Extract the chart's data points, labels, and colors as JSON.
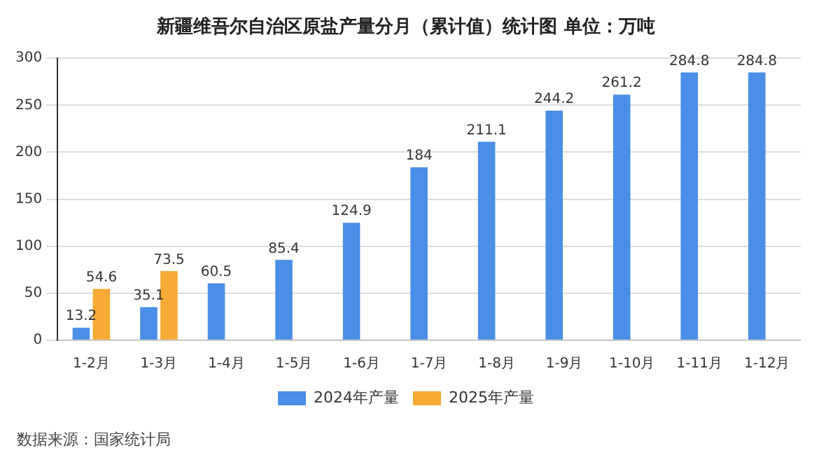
{
  "chart_data": {
    "type": "bar",
    "title": "新疆维吾尔自治区原盐产量分月（累计值）统计图 单位：万吨",
    "categories": [
      "1-2月",
      "1-3月",
      "1-4月",
      "1-5月",
      "1-6月",
      "1-7月",
      "1-8月",
      "1-9月",
      "1-10月",
      "1-11月",
      "1-12月"
    ],
    "series": [
      {
        "name": "2024年产量",
        "color": "#4a8ee8",
        "values": [
          13.2,
          35.1,
          60.5,
          85.4,
          124.9,
          184,
          211.1,
          244.2,
          261.2,
          284.8,
          284.8
        ]
      },
      {
        "name": "2025年产量",
        "color": "#f7ab34",
        "values": [
          54.6,
          73.5,
          null,
          null,
          null,
          null,
          null,
          null,
          null,
          null,
          null
        ]
      }
    ],
    "ylim": [
      0,
      300
    ],
    "yticks": [
      0,
      50,
      100,
      150,
      200,
      250,
      300
    ],
    "grid": "y",
    "legend": "bottom",
    "data_labels": true,
    "annotations": [
      "数据来源：国家统计局"
    ]
  }
}
